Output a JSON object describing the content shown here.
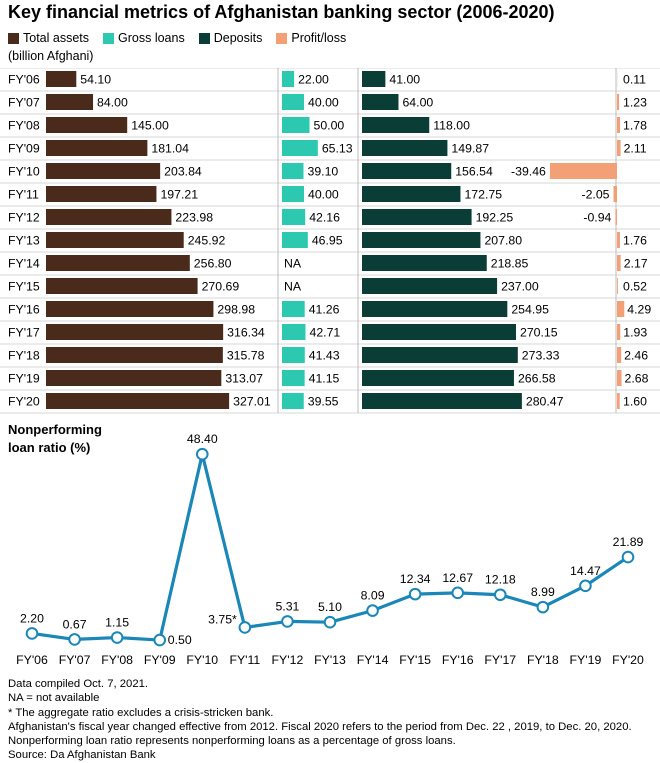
{
  "title": "Key financial metrics of Afghanistan banking sector (2006-2020)",
  "unit_label": "(billion Afghani)",
  "legend": [
    {
      "label": "Total assets",
      "color": "#4a2a1a"
    },
    {
      "label": "Gross loans",
      "color": "#2cc9b0"
    },
    {
      "label": "Deposits",
      "color": "#0a3d35"
    },
    {
      "label": "Profit/loss",
      "color": "#f4a077"
    }
  ],
  "line_title": "Nonperforming loan ratio (%)",
  "chart_data": [
    {
      "type": "bar",
      "categories": [
        "FY'06",
        "FY'07",
        "FY'08",
        "FY'09",
        "FY'10",
        "FY'11",
        "FY'12",
        "FY'13",
        "FY'14",
        "FY'15",
        "FY'16",
        "FY'17",
        "FY'18",
        "FY'19",
        "FY'20"
      ],
      "series": [
        {
          "name": "Total assets",
          "color": "#4a2a1a",
          "values": [
            54.1,
            84.0,
            145.0,
            181.04,
            203.84,
            197.21,
            223.98,
            245.92,
            256.8,
            270.69,
            298.98,
            316.34,
            315.78,
            313.07,
            327.01
          ],
          "labels": [
            "54.10",
            "84.00",
            "145.00",
            "181.04",
            "203.84",
            "197.21",
            "223.98",
            "245.92",
            "256.80",
            "270.69",
            "298.98",
            "316.34",
            "315.78",
            "313.07",
            "327.01"
          ]
        },
        {
          "name": "Gross loans",
          "color": "#2cc9b0",
          "values": [
            22.0,
            40.0,
            50.0,
            65.13,
            39.1,
            40.0,
            42.16,
            46.95,
            null,
            null,
            41.26,
            42.71,
            41.43,
            41.15,
            39.55
          ],
          "labels": [
            "22.00",
            "40.00",
            "50.00",
            "65.13",
            "39.10",
            "40.00",
            "42.16",
            "46.95",
            "NA",
            "NA",
            "41.26",
            "42.71",
            "41.43",
            "41.15",
            "39.55"
          ]
        },
        {
          "name": "Deposits",
          "color": "#0a3d35",
          "values": [
            41.0,
            64.0,
            118.0,
            149.87,
            156.54,
            172.75,
            192.25,
            207.8,
            218.85,
            237.0,
            254.95,
            270.15,
            273.33,
            266.58,
            280.47
          ],
          "labels": [
            "41.00",
            "64.00",
            "118.00",
            "149.87",
            "156.54",
            "172.75",
            "192.25",
            "207.80",
            "218.85",
            "237.00",
            "254.95",
            "270.15",
            "273.33",
            "266.58",
            "280.47"
          ]
        },
        {
          "name": "Profit/loss",
          "color": "#f4a077",
          "values": [
            0.11,
            1.23,
            1.78,
            2.11,
            -39.46,
            -2.05,
            -0.94,
            1.76,
            2.17,
            0.52,
            4.29,
            1.93,
            2.46,
            2.68,
            1.6
          ],
          "labels": [
            "0.11",
            "1.23",
            "1.78",
            "2.11",
            "-39.46",
            "-2.05",
            "-0.94",
            "1.76",
            "2.17",
            "0.52",
            "4.29",
            "1.93",
            "2.46",
            "2.68",
            "1.60"
          ]
        }
      ]
    },
    {
      "type": "line",
      "title": "Nonperforming loan ratio (%)",
      "categories": [
        "FY'06",
        "FY'07",
        "FY'08",
        "FY'09",
        "FY'10",
        "FY'11",
        "FY'12",
        "FY'13",
        "FY'14",
        "FY'15",
        "FY'16",
        "FY'17",
        "FY'18",
        "FY'19",
        "FY'20"
      ],
      "values": [
        2.2,
        0.67,
        1.15,
        0.5,
        48.4,
        3.75,
        5.31,
        5.1,
        8.09,
        12.34,
        12.67,
        12.18,
        8.99,
        14.47,
        21.89
      ],
      "labels": [
        "2.20",
        "0.67",
        "1.15",
        "0.50",
        "48.40",
        "3.75*",
        "5.31",
        "5.10",
        "8.09",
        "12.34",
        "12.67",
        "12.18",
        "8.99",
        "14.47",
        "21.89"
      ],
      "color": "#1a87b8",
      "ylim": [
        0,
        50
      ]
    }
  ],
  "notes": [
    "Data compiled Oct. 7, 2021.",
    "NA = not available",
    "* The aggregate ratio excludes a crisis-stricken bank.",
    "Afghanistan's fiscal year changed effective from 2012. Fiscal 2020 refers to the period from Dec. 22 , 2019, to Dec. 20, 2020.",
    "Nonperforming loan ratio represents nonperforming loans as a percentage of gross loans.",
    "Source: Da Afghanistan Bank"
  ]
}
